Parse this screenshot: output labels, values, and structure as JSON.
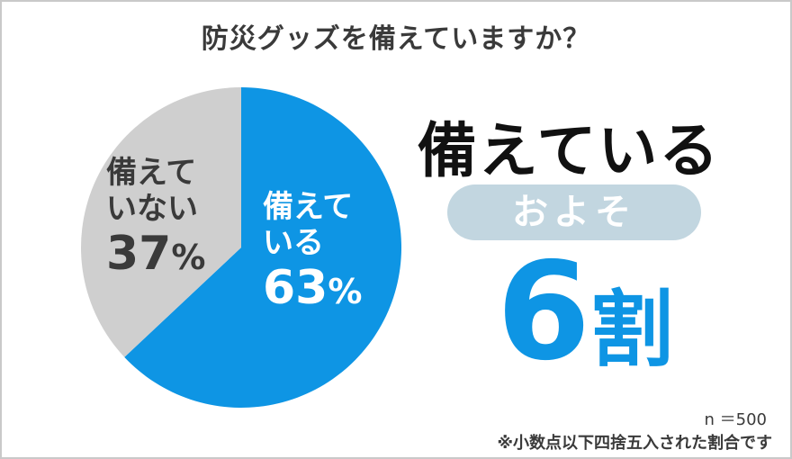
{
  "title": "防災グッズを備えていますか？",
  "chart_data": {
    "type": "pie",
    "title": "防災グッズを備えていますか？",
    "slices": [
      {
        "label_line1": "備えて",
        "label_line2": "いる",
        "value": 63,
        "value_label": "63",
        "color": "#0e95e4"
      },
      {
        "label_line1": "備えて",
        "label_line2": "いない",
        "value": 37,
        "value_label": "37",
        "color": "#cfcfcf"
      }
    ],
    "percent_sign": "%"
  },
  "summary": {
    "headline": "備えている",
    "approx": "およそ",
    "big_number": "6",
    "big_unit": "割"
  },
  "notes": {
    "sample": "n ＝500",
    "rounding": "※小数点以下四捨五入された割合です"
  },
  "colors": {
    "accent": "#0e95e4",
    "gray": "#cfcfcf",
    "pill": "#c2d6e0"
  }
}
